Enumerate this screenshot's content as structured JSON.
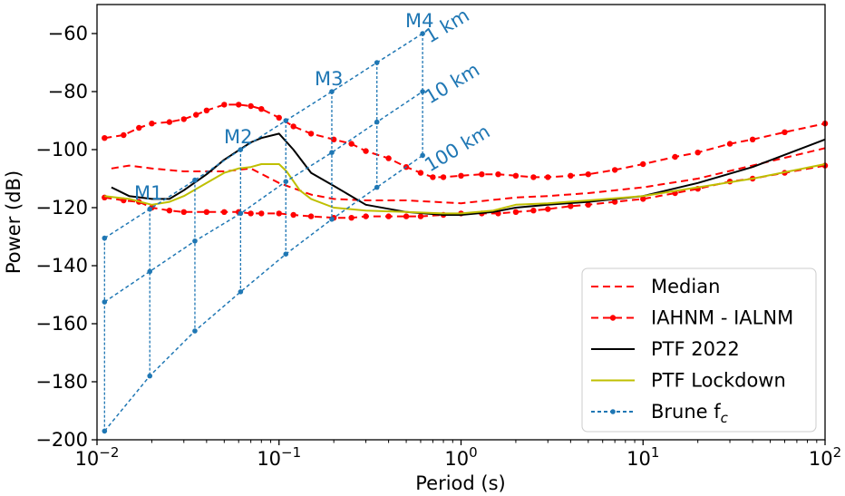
{
  "chart_data": {
    "type": "line",
    "title": "",
    "xlabel": "Period (s)",
    "ylabel": "Power (dB)",
    "xscale": "log",
    "xlim": [
      0.01,
      100
    ],
    "ylim": [
      -200,
      -50
    ],
    "x_ticks": [
      {
        "value": 0.01,
        "base": "10",
        "exp": "−2"
      },
      {
        "value": 0.1,
        "base": "10",
        "exp": "−1"
      },
      {
        "value": 1,
        "base": "10",
        "exp": "0"
      },
      {
        "value": 10,
        "base": "10",
        "exp": "1"
      },
      {
        "value": 100,
        "base": "10",
        "exp": "2"
      }
    ],
    "y_ticks": [
      {
        "value": -200,
        "label": "−200"
      },
      {
        "value": -180,
        "label": "−180"
      },
      {
        "value": -160,
        "label": "−160"
      },
      {
        "value": -140,
        "label": "−140"
      },
      {
        "value": -120,
        "label": "−120"
      },
      {
        "value": -100,
        "label": "−100"
      },
      {
        "value": -80,
        "label": "−80"
      },
      {
        "value": -60,
        "label": "−60"
      }
    ],
    "legend_position": "bottom-right",
    "series": [
      {
        "name": "Median",
        "color": "#ff0000",
        "style": "dashed",
        "marker": false,
        "x": [
          0.012,
          0.015,
          0.02,
          0.03,
          0.05,
          0.07,
          0.1,
          0.15,
          0.2,
          0.3,
          0.5,
          1,
          2,
          3,
          5,
          10,
          20,
          50,
          100
        ],
        "y": [
          -106.5,
          -105.5,
          -106.5,
          -107.5,
          -107.5,
          -106.5,
          -111.5,
          -115.5,
          -117,
          -117.5,
          -117.5,
          -118.5,
          -116.5,
          -116,
          -115,
          -113,
          -110,
          -104,
          -99.5
        ]
      },
      {
        "name": "IAHNM - IALNM",
        "color": "#ff0000",
        "style": "dashed",
        "marker": true,
        "x": [
          0.011,
          0.014,
          0.017,
          0.02,
          0.025,
          0.03,
          0.035,
          0.04,
          0.05,
          0.06,
          0.07,
          0.08,
          0.1,
          0.12,
          0.15,
          0.2,
          0.25,
          0.3,
          0.4,
          0.5,
          0.6,
          0.7,
          0.8,
          1,
          1.3,
          1.6,
          2,
          2.5,
          3,
          4,
          5,
          7,
          10,
          15,
          20,
          30,
          40,
          60,
          100
        ],
        "y": [
          -96,
          -95,
          -92.5,
          -91,
          -90.5,
          -89.5,
          -88,
          -86.5,
          -84.5,
          -84.5,
          -85,
          -86,
          -89,
          -92,
          -94.5,
          -96.5,
          -98,
          -100.5,
          -103,
          -106,
          -108,
          -109.5,
          -109.5,
          -109,
          -108.5,
          -108.5,
          -109,
          -109.5,
          -109.5,
          -109,
          -108.5,
          -107,
          -105,
          -102.5,
          -101,
          -98,
          -96.5,
          -94,
          -91
        ],
        "lower_x": [
          0.011,
          0.014,
          0.017,
          0.02,
          0.025,
          0.03,
          0.04,
          0.05,
          0.06,
          0.07,
          0.08,
          0.1,
          0.12,
          0.15,
          0.2,
          0.25,
          0.3,
          0.4,
          0.5,
          0.6,
          0.8,
          1,
          1.3,
          1.6,
          2,
          2.5,
          3,
          4,
          5,
          7,
          10,
          15,
          20,
          30,
          40,
          60,
          100
        ],
        "lower_y": [
          -116.5,
          -117.5,
          -118,
          -120,
          -121,
          -121.5,
          -121.5,
          -121.5,
          -121.5,
          -122,
          -122,
          -122,
          -122.5,
          -123,
          -123.5,
          -123.5,
          -123,
          -123,
          -123,
          -123,
          -122.5,
          -122,
          -122,
          -122,
          -121.5,
          -121,
          -120.5,
          -119.5,
          -119,
          -118,
          -117,
          -115,
          -113.5,
          -111,
          -110,
          -108,
          -105.5
        ]
      },
      {
        "name": "PTF 2022",
        "color": "#000000",
        "style": "solid",
        "marker": false,
        "x": [
          0.012,
          0.015,
          0.02,
          0.025,
          0.03,
          0.04,
          0.05,
          0.07,
          0.08,
          0.1,
          0.12,
          0.15,
          0.2,
          0.3,
          0.5,
          0.8,
          1,
          1.5,
          2,
          3,
          5,
          10,
          20,
          40,
          100
        ],
        "y": [
          -113,
          -116,
          -117,
          -117,
          -114,
          -108.5,
          -103.5,
          -97.5,
          -96,
          -94.5,
          -100,
          -108,
          -112.5,
          -119,
          -121.5,
          -122.5,
          -122.5,
          -121.5,
          -120,
          -119,
          -118,
          -116,
          -111.5,
          -106,
          -96.5
        ]
      },
      {
        "name": "PTF Lockdown",
        "color": "#bfbf00",
        "style": "solid",
        "marker": false,
        "x": [
          0.011,
          0.015,
          0.02,
          0.025,
          0.03,
          0.04,
          0.05,
          0.06,
          0.07,
          0.08,
          0.1,
          0.11,
          0.13,
          0.15,
          0.2,
          0.3,
          0.5,
          0.8,
          1,
          1.5,
          2,
          3,
          5,
          10,
          20,
          40,
          100
        ],
        "y": [
          -116,
          -117,
          -119,
          -118,
          -116,
          -111.5,
          -108,
          -106.5,
          -106,
          -105,
          -105,
          -107.5,
          -114,
          -117,
          -120,
          -121,
          -121.5,
          -122,
          -122,
          -121,
          -119,
          -118.5,
          -117.5,
          -116,
          -113,
          -110,
          -105
        ]
      },
      {
        "name": "Brune f",
        "sub": "c",
        "color": "#1f77b4",
        "style": "dashed",
        "marker": true,
        "groups": [
          {
            "label": "M1",
            "x": 0.0195,
            "y": [
              -120.5,
              -142,
              -178
            ]
          },
          {
            "label": "M2",
            "x": 0.0615,
            "y": [
              -100,
              -122,
              -149
            ]
          },
          {
            "label": "M3",
            "x": 0.195,
            "y": [
              -80,
              -101,
              -124
            ]
          },
          {
            "label": "M4",
            "x": 0.615,
            "y": [
              -60,
              -80,
              -102
            ]
          }
        ],
        "distances": [
          {
            "label": "1 km",
            "x": [
              0.011,
              0.0195,
              0.0345,
              0.0615,
              0.109,
              0.195,
              0.345,
              0.615
            ],
            "y": [
              -130.5,
              -120.5,
              -110.5,
              -100,
              -90,
              -80,
              -70,
              -60
            ]
          },
          {
            "label": "10 km",
            "x": [
              0.011,
              0.0195,
              0.0345,
              0.0615,
              0.109,
              0.195,
              0.345,
              0.615
            ],
            "y": [
              -152.5,
              -142,
              -131.5,
              -122,
              -111,
              -101,
              -90.5,
              -80
            ]
          },
          {
            "label": "100 km",
            "x": [
              0.011,
              0.0195,
              0.0345,
              0.0615,
              0.109,
              0.195,
              0.345,
              0.615
            ],
            "y": [
              -197,
              -178,
              -162.5,
              -149,
              -136,
              -124,
              -113,
              -102
            ]
          }
        ],
        "stem_x": [
          0.011,
          0.0345,
          0.109,
          0.345
        ]
      }
    ]
  }
}
